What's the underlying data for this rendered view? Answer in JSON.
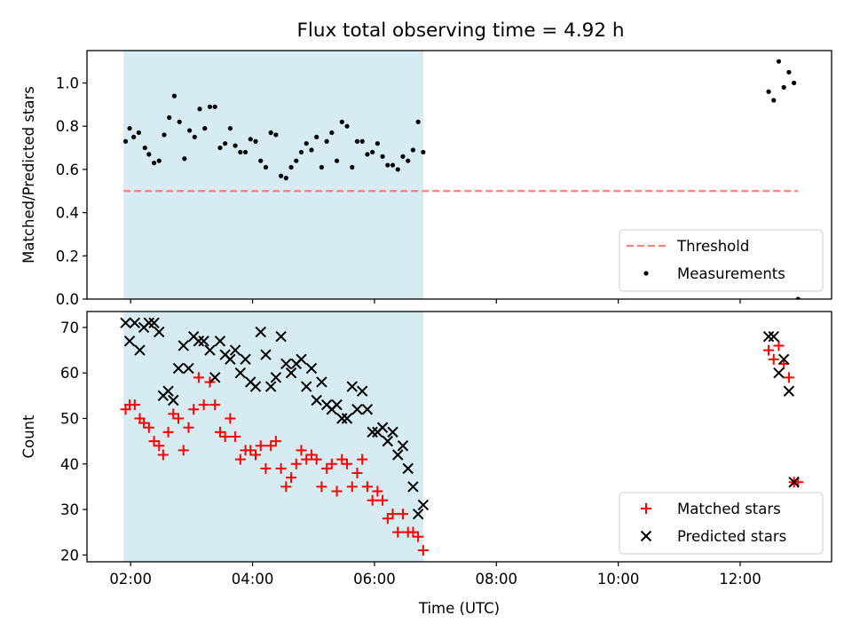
{
  "title": "Flux total observing time = 4.92 h",
  "chart_data": [
    {
      "type": "scatter",
      "ylabel": "Matched/Predicted stars",
      "xlim": [
        "01:17",
        "13:30"
      ],
      "ylim": [
        0,
        1.15
      ],
      "xticks": [
        "02:00",
        "04:00",
        "06:00",
        "08:00",
        "10:00",
        "12:00"
      ],
      "yticks": [
        0.0,
        0.2,
        0.4,
        0.6,
        0.8,
        1.0
      ],
      "ytick_labels": [
        "0.0",
        "0.2",
        "0.4",
        "0.6",
        "0.8",
        "1.0"
      ],
      "shaded_interval": [
        "01:53",
        "06:48"
      ],
      "legend_position": "lower right",
      "threshold": {
        "name": "Threshold",
        "value": 0.5,
        "x_range": [
          "01:53",
          "12:57"
        ],
        "color": "#ff7f7f"
      },
      "series": [
        {
          "name": "Measurements",
          "color": "#000000",
          "points": [
            [
              "01:55",
              0.73
            ],
            [
              "01:59",
              0.79
            ],
            [
              "02:03",
              0.75
            ],
            [
              "02:08",
              0.77
            ],
            [
              "02:14",
              0.7
            ],
            [
              "02:18",
              0.67
            ],
            [
              "02:23",
              0.63
            ],
            [
              "02:28",
              0.64
            ],
            [
              "02:33",
              0.76
            ],
            [
              "02:38",
              0.84
            ],
            [
              "02:43",
              0.94
            ],
            [
              "02:48",
              0.82
            ],
            [
              "02:53",
              0.65
            ],
            [
              "02:58",
              0.78
            ],
            [
              "03:03",
              0.75
            ],
            [
              "03:08",
              0.88
            ],
            [
              "03:13",
              0.79
            ],
            [
              "03:18",
              0.89
            ],
            [
              "03:23",
              0.89
            ],
            [
              "03:28",
              0.7
            ],
            [
              "03:33",
              0.72
            ],
            [
              "03:38",
              0.79
            ],
            [
              "03:43",
              0.71
            ],
            [
              "03:48",
              0.68
            ],
            [
              "03:53",
              0.68
            ],
            [
              "03:58",
              0.74
            ],
            [
              "04:03",
              0.73
            ],
            [
              "04:08",
              0.64
            ],
            [
              "04:13",
              0.61
            ],
            [
              "04:18",
              0.77
            ],
            [
              "04:23",
              0.76
            ],
            [
              "04:28",
              0.57
            ],
            [
              "04:33",
              0.56
            ],
            [
              "04:38",
              0.61
            ],
            [
              "04:43",
              0.64
            ],
            [
              "04:48",
              0.68
            ],
            [
              "04:53",
              0.72
            ],
            [
              "04:58",
              0.69
            ],
            [
              "05:03",
              0.75
            ],
            [
              "05:08",
              0.61
            ],
            [
              "05:13",
              0.73
            ],
            [
              "05:18",
              0.77
            ],
            [
              "05:23",
              0.64
            ],
            [
              "05:28",
              0.82
            ],
            [
              "05:33",
              0.8
            ],
            [
              "05:38",
              0.61
            ],
            [
              "05:43",
              0.73
            ],
            [
              "05:48",
              0.73
            ],
            [
              "05:53",
              0.67
            ],
            [
              "05:58",
              0.68
            ],
            [
              "06:03",
              0.72
            ],
            [
              "06:08",
              0.66
            ],
            [
              "06:13",
              0.62
            ],
            [
              "06:18",
              0.62
            ],
            [
              "06:23",
              0.6
            ],
            [
              "06:28",
              0.66
            ],
            [
              "06:33",
              0.64
            ],
            [
              "06:38",
              0.69
            ],
            [
              "06:43",
              0.82
            ],
            [
              "06:48",
              0.68
            ],
            [
              "12:28",
              0.96
            ],
            [
              "12:33",
              0.92
            ],
            [
              "12:38",
              1.1
            ],
            [
              "12:43",
              0.98
            ],
            [
              "12:48",
              1.05
            ],
            [
              "12:53",
              1.0
            ],
            [
              "12:57",
              0.0
            ]
          ]
        }
      ]
    },
    {
      "type": "scatter",
      "xlabel": "Time (UTC)",
      "ylabel": "Count",
      "xlim": [
        "01:17",
        "13:30"
      ],
      "ylim": [
        18.5,
        73.5
      ],
      "xticks": [
        "02:00",
        "04:00",
        "06:00",
        "08:00",
        "10:00",
        "12:00"
      ],
      "yticks": [
        20,
        30,
        40,
        50,
        60,
        70
      ],
      "shaded_interval": [
        "01:53",
        "06:48"
      ],
      "legend_position": "lower right",
      "series": [
        {
          "name": "Matched stars",
          "marker": "+",
          "color": "#ff0000",
          "points": [
            [
              "01:55",
              52
            ],
            [
              "01:59",
              53
            ],
            [
              "02:04",
              53
            ],
            [
              "02:09",
              50
            ],
            [
              "02:13",
              49
            ],
            [
              "02:18",
              48
            ],
            [
              "02:23",
              45
            ],
            [
              "02:28",
              44
            ],
            [
              "02:32",
              42
            ],
            [
              "02:37",
              47
            ],
            [
              "02:42",
              51
            ],
            [
              "02:47",
              50
            ],
            [
              "02:52",
              43
            ],
            [
              "02:57",
              48
            ],
            [
              "03:02",
              52
            ],
            [
              "03:07",
              59
            ],
            [
              "03:12",
              53
            ],
            [
              "03:18",
              58
            ],
            [
              "03:23",
              53
            ],
            [
              "03:28",
              47
            ],
            [
              "03:33",
              46
            ],
            [
              "03:38",
              50
            ],
            [
              "03:43",
              46
            ],
            [
              "03:48",
              41
            ],
            [
              "03:53",
              43
            ],
            [
              "03:58",
              43
            ],
            [
              "04:03",
              42
            ],
            [
              "04:08",
              44
            ],
            [
              "04:13",
              39
            ],
            [
              "04:18",
              44
            ],
            [
              "04:23",
              45
            ],
            [
              "04:28",
              39
            ],
            [
              "04:33",
              35
            ],
            [
              "04:38",
              37
            ],
            [
              "04:43",
              40
            ],
            [
              "04:48",
              43
            ],
            [
              "04:53",
              41
            ],
            [
              "04:58",
              42
            ],
            [
              "05:03",
              41
            ],
            [
              "05:08",
              35
            ],
            [
              "05:13",
              39
            ],
            [
              "05:18",
              40
            ],
            [
              "05:23",
              34
            ],
            [
              "05:28",
              41
            ],
            [
              "05:33",
              40
            ],
            [
              "05:38",
              35
            ],
            [
              "05:43",
              38
            ],
            [
              "05:48",
              41
            ],
            [
              "05:53",
              35
            ],
            [
              "05:58",
              32
            ],
            [
              "06:03",
              34
            ],
            [
              "06:08",
              32
            ],
            [
              "06:13",
              28
            ],
            [
              "06:18",
              29
            ],
            [
              "06:23",
              25
            ],
            [
              "06:28",
              29
            ],
            [
              "06:33",
              25
            ],
            [
              "06:38",
              25
            ],
            [
              "06:43",
              24
            ],
            [
              "06:48",
              21
            ],
            [
              "12:28",
              65
            ],
            [
              "12:33",
              63
            ],
            [
              "12:38",
              66
            ],
            [
              "12:43",
              62
            ],
            [
              "12:48",
              59
            ],
            [
              "12:53",
              36
            ],
            [
              "12:57",
              36
            ]
          ]
        },
        {
          "name": "Predicted stars",
          "marker": "x",
          "color": "#000000",
          "points": [
            [
              "01:55",
              71
            ],
            [
              "01:59",
              67
            ],
            [
              "02:04",
              71
            ],
            [
              "02:09",
              65
            ],
            [
              "02:13",
              70
            ],
            [
              "02:18",
              71
            ],
            [
              "02:23",
              71
            ],
            [
              "02:28",
              69
            ],
            [
              "02:32",
              55
            ],
            [
              "02:37",
              56
            ],
            [
              "02:42",
              54
            ],
            [
              "02:47",
              61
            ],
            [
              "02:52",
              66
            ],
            [
              "02:57",
              61
            ],
            [
              "03:02",
              68
            ],
            [
              "03:07",
              67
            ],
            [
              "03:12",
              67
            ],
            [
              "03:18",
              65
            ],
            [
              "03:23",
              59
            ],
            [
              "03:28",
              67
            ],
            [
              "03:33",
              64
            ],
            [
              "03:38",
              63
            ],
            [
              "03:43",
              65
            ],
            [
              "03:48",
              60
            ],
            [
              "03:53",
              63
            ],
            [
              "03:58",
              58
            ],
            [
              "04:03",
              57
            ],
            [
              "04:08",
              69
            ],
            [
              "04:13",
              64
            ],
            [
              "04:18",
              57
            ],
            [
              "04:23",
              59
            ],
            [
              "04:28",
              68
            ],
            [
              "04:33",
              62
            ],
            [
              "04:38",
              60
            ],
            [
              "04:43",
              62
            ],
            [
              "04:48",
              63
            ],
            [
              "04:53",
              57
            ],
            [
              "04:58",
              61
            ],
            [
              "05:03",
              54
            ],
            [
              "05:08",
              58
            ],
            [
              "05:13",
              53
            ],
            [
              "05:18",
              52
            ],
            [
              "05:23",
              53
            ],
            [
              "05:28",
              50
            ],
            [
              "05:33",
              50
            ],
            [
              "05:38",
              57
            ],
            [
              "05:43",
              52
            ],
            [
              "05:48",
              56
            ],
            [
              "05:53",
              52
            ],
            [
              "05:58",
              47
            ],
            [
              "06:03",
              47
            ],
            [
              "06:08",
              48
            ],
            [
              "06:13",
              45
            ],
            [
              "06:18",
              47
            ],
            [
              "06:23",
              42
            ],
            [
              "06:28",
              44
            ],
            [
              "06:33",
              39
            ],
            [
              "06:38",
              35
            ],
            [
              "06:43",
              29
            ],
            [
              "06:48",
              31
            ],
            [
              "12:28",
              68
            ],
            [
              "12:33",
              68
            ],
            [
              "12:38",
              60
            ],
            [
              "12:43",
              63
            ],
            [
              "12:48",
              56
            ],
            [
              "12:53",
              36
            ]
          ]
        }
      ]
    }
  ]
}
